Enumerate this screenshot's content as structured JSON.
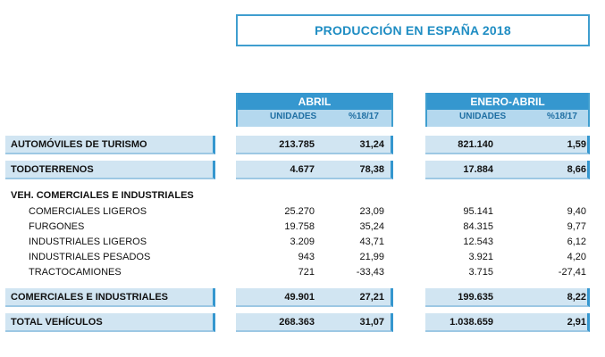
{
  "title": "PRODUCCIÓN EN ESPAÑA 2018",
  "columns": {
    "abril": {
      "label": "ABRIL",
      "units": "UNIDADES",
      "pct": "%18/17"
    },
    "enero_abril": {
      "label": "ENERO-ABRIL",
      "units": "UNIDADES",
      "pct": "%18/17"
    }
  },
  "rows": {
    "turismo": {
      "label": "AUTOMÓVILES DE TURISMO",
      "abril_units": "213.785",
      "abril_pct": "31,24",
      "ea_units": "821.140",
      "ea_pct": "1,59"
    },
    "todoterrenos": {
      "label": "TODOTERRENOS",
      "abril_units": "4.677",
      "abril_pct": "78,38",
      "ea_units": "17.884",
      "ea_pct": "8,66"
    },
    "veh_header": {
      "label": "VEH. COMERCIALES E INDUSTRIALES"
    },
    "com_ligeros": {
      "label": "COMERCIALES LIGEROS",
      "abril_units": "25.270",
      "abril_pct": "23,09",
      "ea_units": "95.141",
      "ea_pct": "9,40"
    },
    "furgones": {
      "label": "FURGONES",
      "abril_units": "19.758",
      "abril_pct": "35,24",
      "ea_units": "84.315",
      "ea_pct": "9,77"
    },
    "ind_ligeros": {
      "label": "INDUSTRIALES LIGEROS",
      "abril_units": "3.209",
      "abril_pct": "43,71",
      "ea_units": "12.543",
      "ea_pct": "6,12"
    },
    "ind_pesados": {
      "label": "INDUSTRIALES PESADOS",
      "abril_units": "943",
      "abril_pct": "21,99",
      "ea_units": "3.921",
      "ea_pct": "4,20"
    },
    "tractocamiones": {
      "label": "TRACTOCAMIONES",
      "abril_units": "721",
      "abril_pct": "-33,43",
      "ea_units": "3.715",
      "ea_pct": "-27,41"
    },
    "com_ind": {
      "label": "COMERCIALES E INDUSTRIALES",
      "abril_units": "49.901",
      "abril_pct": "27,21",
      "ea_units": "199.635",
      "ea_pct": "8,22"
    },
    "total": {
      "label": "TOTAL VEHÍCULOS",
      "abril_units": "268.363",
      "abril_pct": "31,07",
      "ea_units": "1.038.659",
      "ea_pct": "2,91"
    }
  },
  "colors": {
    "accent": "#3597cf",
    "header_fill": "#b4d8ee",
    "row_fill": "#d1e5f2"
  }
}
